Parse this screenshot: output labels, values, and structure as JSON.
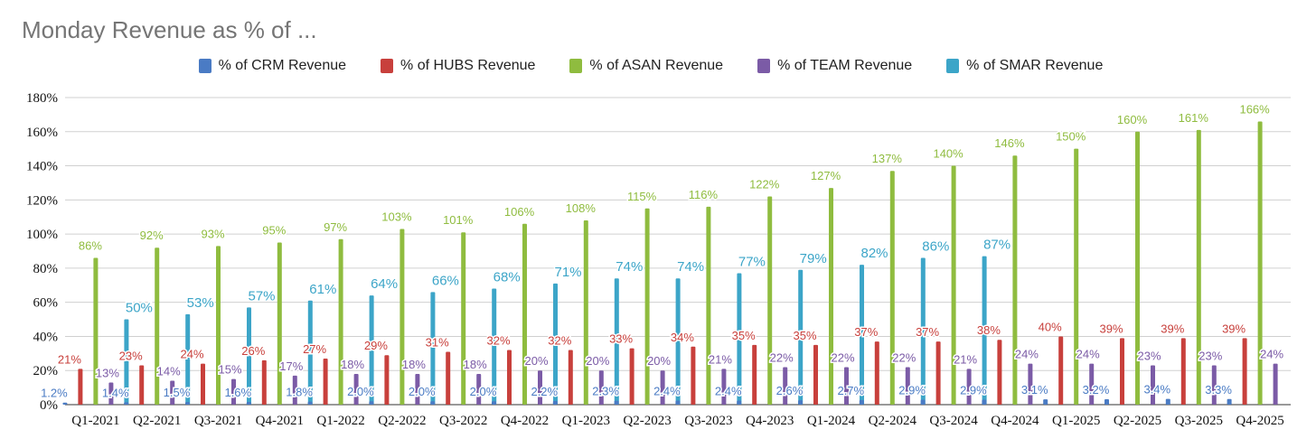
{
  "chart_data": {
    "type": "bar",
    "title": "Monday Revenue as % of ...",
    "xlabel": "",
    "ylabel": "",
    "ylim": [
      0,
      180
    ],
    "yticks": [
      "0%",
      "20%",
      "40%",
      "60%",
      "80%",
      "100%",
      "120%",
      "140%",
      "160%",
      "180%"
    ],
    "grid": true,
    "legend_position": "top-center",
    "categories": [
      "Q1-2021",
      "Q2-2021",
      "Q3-2021",
      "Q4-2021",
      "Q1-2022",
      "Q2-2022",
      "Q3-2022",
      "Q4-2022",
      "Q1-2023",
      "Q2-2023",
      "Q3-2023",
      "Q4-2023",
      "Q1-2024",
      "Q2-2024",
      "Q3-2024",
      "Q4-2024",
      "Q1-2025",
      "Q2-2025",
      "Q3-2025",
      "Q4-2025"
    ],
    "series": [
      {
        "name": "% of CRM Revenue",
        "color": "#4a7bc4",
        "values": [
          1.2,
          1.4,
          1.5,
          1.6,
          1.8,
          2.0,
          2.0,
          2.0,
          2.2,
          2.3,
          2.4,
          2.4,
          2.6,
          2.7,
          2.9,
          2.9,
          3.1,
          3.2,
          3.4,
          3.3
        ],
        "labels": [
          "1.2%",
          "1.4%",
          "1.5%",
          "1.6%",
          "1.8%",
          "2.0%",
          "2.0%",
          "2.0%",
          "2.2%",
          "2.3%",
          "2.4%",
          "2.4%",
          "2.6%",
          "2.7%",
          "2.9%",
          "2.9%",
          "3.1%",
          "3.2%",
          "3.4%",
          "3.3%"
        ]
      },
      {
        "name": "% of HUBS Revenue",
        "color": "#c8403c",
        "values": [
          21,
          23,
          24,
          26,
          27,
          29,
          31,
          32,
          32,
          33,
          34,
          35,
          35,
          37,
          37,
          38,
          40,
          39,
          39,
          39
        ],
        "labels": [
          "21%",
          "23%",
          "24%",
          "26%",
          "27%",
          "29%",
          "31%",
          "32%",
          "32%",
          "33%",
          "34%",
          "35%",
          "35%",
          "37%",
          "37%",
          "38%",
          "40%",
          "39%",
          "39%",
          "39%"
        ]
      },
      {
        "name": "% of ASAN Revenue",
        "color": "#8fbc3f",
        "values": [
          86,
          92,
          93,
          95,
          97,
          103,
          101,
          106,
          108,
          115,
          116,
          122,
          127,
          137,
          140,
          146,
          150,
          160,
          161,
          166
        ],
        "labels": [
          "86%",
          "92%",
          "93%",
          "95%",
          "97%",
          "103%",
          "101%",
          "106%",
          "108%",
          "115%",
          "116%",
          "122%",
          "127%",
          "137%",
          "140%",
          "146%",
          "150%",
          "160%",
          "161%",
          "166%"
        ]
      },
      {
        "name": "% of TEAM Revenue",
        "color": "#7b5ba6",
        "values": [
          13,
          14,
          15,
          17,
          18,
          18,
          18,
          20,
          20,
          20,
          21,
          22,
          22,
          22,
          21,
          24,
          24,
          23,
          23,
          24
        ],
        "labels": [
          "13%",
          "14%",
          "15%",
          "17%",
          "18%",
          "18%",
          "18%",
          "20%",
          "20%",
          "20%",
          "21%",
          "22%",
          "22%",
          "22%",
          "21%",
          "24%",
          "24%",
          "23%",
          "23%",
          "24%"
        ]
      },
      {
        "name": "% of SMAR Revenue",
        "color": "#3ca5c8",
        "values": [
          50,
          53,
          57,
          61,
          64,
          66,
          68,
          71,
          74,
          74,
          77,
          79,
          82,
          86,
          87,
          null,
          null,
          null,
          null,
          null
        ],
        "labels": [
          "50%",
          "53%",
          "57%",
          "61%",
          "64%",
          "66%",
          "68%",
          "71%",
          "74%",
          "74%",
          "77%",
          "79%",
          "82%",
          "86%",
          "87%",
          null,
          null,
          null,
          null,
          null
        ]
      }
    ]
  }
}
